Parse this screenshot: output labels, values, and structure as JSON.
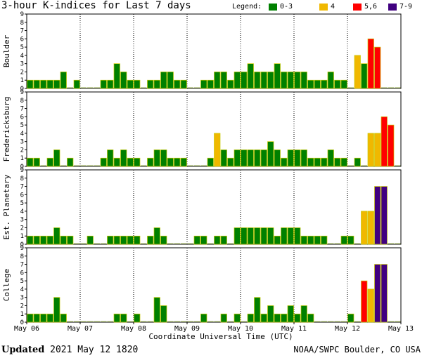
{
  "title": "3-hour K-indices for Last 7 days",
  "legend": {
    "label": "Legend:",
    "items": [
      {
        "text": "0-3",
        "color": "#008000"
      },
      {
        "text": "4",
        "color": "#f0b800"
      },
      {
        "text": "5,6",
        "color": "#ff0000"
      },
      {
        "text": "7-9",
        "color": "#400080"
      }
    ]
  },
  "footer": {
    "updated_label": "Updated",
    "updated_value": "2021 May 12 1820",
    "source": "NOAA/SWPC Boulder, CO USA"
  },
  "chart_data": {
    "type": "bar",
    "xlabel": "Coordinate Universal Time (UTC)",
    "x_ticks": [
      "May 06",
      "May 07",
      "May 08",
      "May 09",
      "May 10",
      "May 11",
      "May 12",
      "May 13"
    ],
    "y_ticks": [
      0,
      1,
      2,
      3,
      4,
      5,
      6,
      7,
      8,
      9
    ],
    "ylim": [
      0,
      9
    ],
    "interval_hours": 3,
    "colors": {
      "low": "#008000",
      "four": "#f0b800",
      "five_six": "#ff0000",
      "high": "#400080",
      "zero_line": "#b0c080"
    },
    "panels": [
      {
        "ylabel": "Boulder",
        "values": [
          1,
          1,
          1,
          1,
          1,
          2,
          0,
          1,
          0,
          0,
          0,
          1,
          1,
          3,
          2,
          1,
          1,
          0,
          1,
          1,
          2,
          2,
          1,
          1,
          0,
          0,
          1,
          1,
          2,
          2,
          1,
          2,
          2,
          3,
          2,
          2,
          2,
          3,
          2,
          2,
          2,
          2,
          1,
          1,
          1,
          2,
          1,
          1,
          0,
          4,
          3,
          6,
          5,
          0,
          0,
          0
        ]
      },
      {
        "ylabel": "Fredericksburg",
        "values": [
          1,
          1,
          0,
          1,
          2,
          0,
          1,
          0,
          0,
          0,
          0,
          1,
          2,
          1,
          2,
          1,
          1,
          0,
          1,
          2,
          2,
          1,
          1,
          1,
          0,
          0,
          0,
          1,
          4,
          2,
          1,
          2,
          2,
          2,
          2,
          2,
          3,
          2,
          1,
          2,
          2,
          2,
          1,
          1,
          1,
          2,
          1,
          1,
          0,
          1,
          0,
          4,
          4,
          6,
          5,
          0
        ]
      },
      {
        "ylabel": "Est. Planetary",
        "values": [
          1,
          1,
          1,
          1,
          2,
          1,
          1,
          0,
          0,
          1,
          0,
          0,
          1,
          1,
          1,
          1,
          1,
          0,
          1,
          2,
          1,
          0,
          0,
          0,
          0,
          1,
          1,
          0,
          1,
          1,
          0,
          2,
          2,
          2,
          2,
          2,
          2,
          1,
          2,
          2,
          2,
          1,
          1,
          1,
          1,
          0,
          0,
          1,
          1,
          0,
          4,
          4,
          7,
          7,
          0,
          0
        ]
      },
      {
        "ylabel": "College",
        "values": [
          1,
          1,
          1,
          1,
          3,
          1,
          0,
          0,
          0,
          0,
          0,
          0,
          0,
          1,
          1,
          0,
          1,
          0,
          0,
          3,
          2,
          0,
          0,
          0,
          0,
          0,
          1,
          0,
          0,
          1,
          0,
          1,
          0,
          1,
          3,
          1,
          2,
          1,
          1,
          2,
          1,
          2,
          1,
          0,
          0,
          0,
          0,
          0,
          1,
          0,
          5,
          4,
          7,
          7,
          0,
          0
        ]
      }
    ]
  }
}
